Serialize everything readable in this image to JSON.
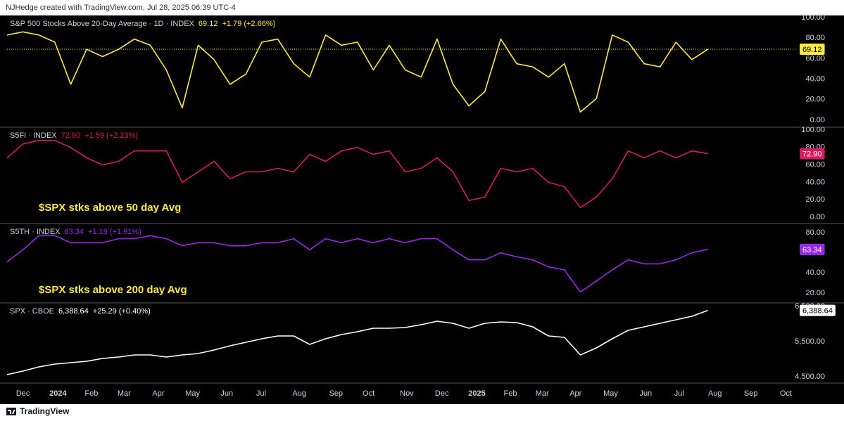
{
  "header": "NJHedge created with TradingView.com, Jul 28, 2025 06:39 UTC-4",
  "footer": "TradingView",
  "chart_data": {
    "type": "line",
    "x": [
      0,
      2,
      4,
      6,
      8,
      10,
      12,
      14,
      16,
      18,
      20,
      22,
      24,
      26,
      28,
      30,
      32,
      34,
      36,
      38,
      40,
      42,
      44,
      46,
      48,
      50,
      52,
      54,
      56,
      58,
      60,
      62,
      64,
      66,
      68,
      70,
      72,
      74,
      76,
      78,
      80,
      82,
      84,
      86,
      88
    ],
    "xlim": [
      0,
      99
    ],
    "xticks": [
      {
        "value": 2.0,
        "label": "Dec"
      },
      {
        "value": 6.4,
        "label": "2024"
      },
      {
        "value": 10.6,
        "label": "Feb"
      },
      {
        "value": 14.7,
        "label": "Mar"
      },
      {
        "value": 19.0,
        "label": "Apr"
      },
      {
        "value": 23.3,
        "label": "May"
      },
      {
        "value": 27.6,
        "label": "Jun"
      },
      {
        "value": 31.9,
        "label": "Jul"
      },
      {
        "value": 36.7,
        "label": "Aug"
      },
      {
        "value": 41.3,
        "label": "Sep"
      },
      {
        "value": 45.4,
        "label": "Oct"
      },
      {
        "value": 50.2,
        "label": "Nov"
      },
      {
        "value": 54.6,
        "label": "Dec"
      },
      {
        "value": 59.0,
        "label": "2025"
      },
      {
        "value": 63.2,
        "label": "Feb"
      },
      {
        "value": 67.2,
        "label": "Mar"
      },
      {
        "value": 71.4,
        "label": "Apr"
      },
      {
        "value": 75.8,
        "label": "May"
      },
      {
        "value": 80.2,
        "label": "Jun"
      },
      {
        "value": 84.4,
        "label": "Jul"
      },
      {
        "value": 88.9,
        "label": "Aug"
      },
      {
        "value": 93.4,
        "label": "Sep"
      },
      {
        "value": 97.8,
        "label": "Oct"
      }
    ],
    "panes": [
      {
        "series": [
          {
            "name": "S&P 500 Stocks Above 20-Day Average · 1D · INDEX",
            "color": "#ffeb3b",
            "values": [
              83,
              86,
              83,
              76,
              35,
              69,
              62,
              69,
              79,
              73,
              49,
              12,
              73,
              59,
              35,
              45,
              76,
              79,
              55,
              42,
              83,
              73,
              76,
              49,
              73,
              49,
              42,
              79,
              35,
              14,
              28,
              79,
              55,
              52,
              42,
              55,
              8,
              21,
              83,
              76,
              55,
              52,
              76,
              59,
              69.12
            ]
          }
        ],
        "last": 69.12,
        "change": "+1.79 (+2.66%)",
        "ylim": [
          -6.8,
          102
        ],
        "yticks": [
          {
            "value": 0,
            "label": "0.00"
          },
          {
            "value": 20,
            "label": "20.00"
          },
          {
            "value": 40,
            "label": "40.00"
          },
          {
            "value": 60,
            "label": "60.00"
          },
          {
            "value": 80,
            "label": "80.00"
          },
          {
            "value": 100,
            "label": "100.00"
          }
        ],
        "last_line": true
      },
      {
        "series": [
          {
            "name": "S5FI · INDEX",
            "color": "#d81b60",
            "values": [
              68,
              84,
              88,
              88,
              80,
              68,
              60,
              64,
              76,
              76,
              76,
              40,
              52,
              64,
              44,
              52,
              52,
              56,
              52,
              72,
              64,
              76,
              80,
              72,
              76,
              52,
              56,
              68,
              52,
              19,
              23,
              56,
              52,
              56,
              40,
              35,
              11,
              23,
              44,
              76,
              68,
              76,
              68,
              76,
              72.9
            ]
          }
        ],
        "last": 72.9,
        "last_label": "72.90",
        "change": "+1.59 (+2.23%)",
        "annotation": "$SPX stks above 50 day Avg",
        "ylim": [
          -7.3,
          103.2
        ],
        "yticks": [
          {
            "value": 0,
            "label": "0.00"
          },
          {
            "value": 20,
            "label": "20.00"
          },
          {
            "value": 40,
            "label": "40.00"
          },
          {
            "value": 60,
            "label": "60.00"
          },
          {
            "value": 80,
            "label": "80.00"
          },
          {
            "value": 100,
            "label": "100.00"
          }
        ]
      },
      {
        "series": [
          {
            "name": "S5TH · INDEX",
            "color": "#9c27f0",
            "values": [
              51,
              63,
              77,
              77,
              70,
              70,
              70,
              74,
              74,
              77,
              74,
              67,
              70,
              70,
              67,
              67,
              70,
              70,
              74,
              63,
              74,
              70,
              74,
              70,
              74,
              70,
              74,
              74,
              63,
              53,
              53,
              60,
              56,
              53,
              46,
              43,
              21,
              32,
              43,
              53,
              49,
              49,
              53,
              60,
              63.34
            ]
          }
        ],
        "last": 63.34,
        "change": "+1.19 (+1.91%)",
        "annotation": "$SPX stks above 200 day Avg",
        "ylim": [
          10.2,
          89.1
        ],
        "yticks": [
          {
            "value": 20,
            "label": "20.00"
          },
          {
            "value": 40,
            "label": "40.00"
          },
          {
            "value": 60,
            "label": "60.00"
          },
          {
            "value": 80,
            "label": "80.00"
          }
        ]
      },
      {
        "series": [
          {
            "name": "SPX · CBOE",
            "color": "#ffffff",
            "values": [
              4560,
              4660,
              4780,
              4860,
              4900,
              4940,
              5020,
              5060,
              5120,
              5120,
              5060,
              5120,
              5160,
              5260,
              5380,
              5480,
              5580,
              5660,
              5660,
              5420,
              5580,
              5700,
              5780,
              5880,
              5880,
              5900,
              5980,
              6080,
              6020,
              5880,
              6020,
              6060,
              6040,
              5920,
              5660,
              5620,
              5120,
              5320,
              5580,
              5820,
              5920,
              6020,
              6120,
              6220,
              6388.64
            ]
          }
        ],
        "last": 6388.64,
        "last_label": "6,388.64",
        "change": "+25.29 (+0.40%)",
        "ylim": [
          4320,
          6600
        ],
        "yticks": [
          {
            "value": 4500,
            "label": "4,500.00"
          },
          {
            "value": 5500,
            "label": "5,500.00"
          },
          {
            "value": 6500,
            "label": "6,500.00"
          }
        ]
      }
    ]
  }
}
